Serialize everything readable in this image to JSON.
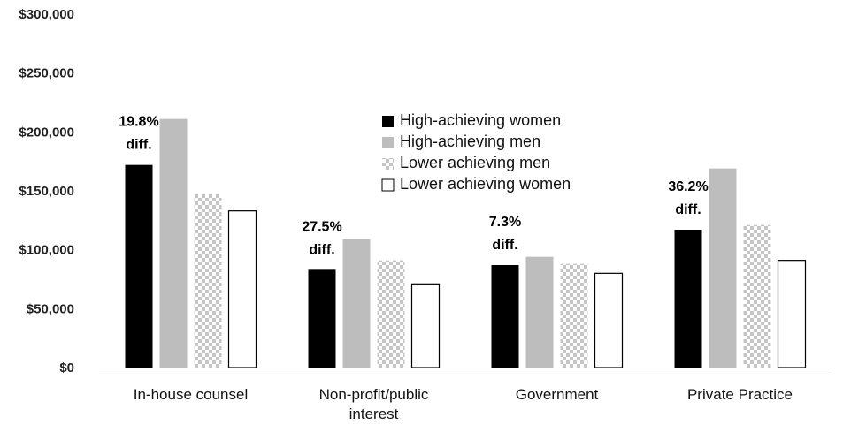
{
  "chart_data": {
    "type": "bar",
    "title": "",
    "xlabel": "",
    "ylabel": "",
    "ylim": [
      0,
      300000
    ],
    "y_ticks": [
      0,
      50000,
      100000,
      150000,
      200000,
      250000,
      300000
    ],
    "y_tick_labels": [
      "$0",
      "$50,000",
      "$100,000",
      "$150,000",
      "$200,000",
      "$250,000",
      "$300,000"
    ],
    "categories": [
      "In-house counsel",
      "Non-profit/public interest",
      "Government",
      "Private Practice"
    ],
    "category_lines": [
      [
        "In-house counsel"
      ],
      [
        "Non-profit/public",
        "interest"
      ],
      [
        "Government"
      ],
      [
        "Private Practice"
      ]
    ],
    "series": [
      {
        "name": "High-achieving women",
        "values": [
          172000,
          83000,
          87000,
          117000
        ],
        "color": "#000000",
        "pattern": "solid"
      },
      {
        "name": "High-achieving men",
        "values": [
          211000,
          109000,
          94000,
          169000
        ],
        "color": "#bdbdbd",
        "pattern": "solid"
      },
      {
        "name": "Lower achieving men",
        "values": [
          147000,
          91000,
          88000,
          121000
        ],
        "color": "#cccccc",
        "pattern": "checker"
      },
      {
        "name": "Lower achieving women",
        "values": [
          133000,
          71000,
          80000,
          91000
        ],
        "color": "#ffffff",
        "pattern": "outline"
      }
    ],
    "legend": {
      "position": "center-right-of-in-house"
    },
    "annotations": [
      {
        "category": "In-house counsel",
        "lines": [
          "19.8%",
          "diff."
        ]
      },
      {
        "category": "Non-profit/public interest",
        "lines": [
          "27.5%",
          "diff."
        ]
      },
      {
        "category": "Government",
        "lines": [
          "7.3%",
          "diff."
        ]
      },
      {
        "category": "Private Practice",
        "lines": [
          "36.2%",
          "diff."
        ]
      }
    ],
    "grid": false
  }
}
